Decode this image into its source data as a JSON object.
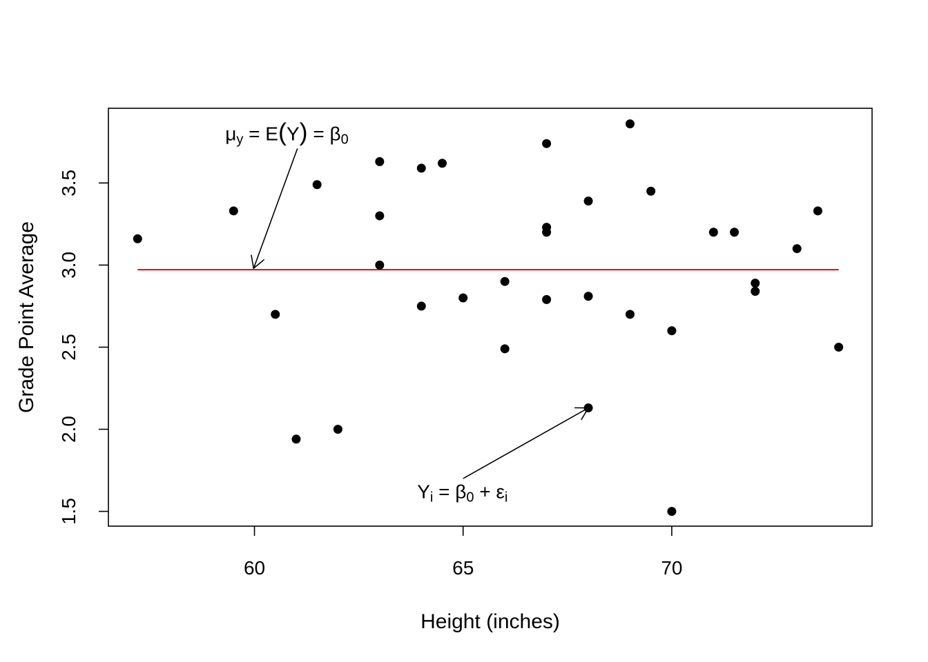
{
  "chart_data": {
    "type": "scatter",
    "xlabel": "Height (inches)",
    "ylabel": "Grade Point Average",
    "xlim": [
      56.5,
      74.8
    ],
    "ylim": [
      1.41,
      3.955
    ],
    "xticks": [
      60,
      65,
      70
    ],
    "yticks": [
      1.5,
      2.0,
      2.5,
      3.0,
      3.5
    ],
    "grid": false,
    "points": [
      {
        "x": 57.2,
        "y": 3.16
      },
      {
        "x": 59.5,
        "y": 3.33
      },
      {
        "x": 60.5,
        "y": 2.7
      },
      {
        "x": 61.0,
        "y": 1.94
      },
      {
        "x": 61.5,
        "y": 3.49
      },
      {
        "x": 62.0,
        "y": 2.0
      },
      {
        "x": 63.0,
        "y": 3.63
      },
      {
        "x": 63.0,
        "y": 3.3
      },
      {
        "x": 63.0,
        "y": 3.0
      },
      {
        "x": 64.0,
        "y": 3.59
      },
      {
        "x": 64.0,
        "y": 2.75
      },
      {
        "x": 64.5,
        "y": 3.62
      },
      {
        "x": 65.0,
        "y": 2.8
      },
      {
        "x": 66.0,
        "y": 2.9
      },
      {
        "x": 66.0,
        "y": 2.49
      },
      {
        "x": 67.0,
        "y": 3.74
      },
      {
        "x": 67.0,
        "y": 3.23
      },
      {
        "x": 67.0,
        "y": 3.2
      },
      {
        "x": 67.0,
        "y": 2.79
      },
      {
        "x": 68.0,
        "y": 3.39
      },
      {
        "x": 68.0,
        "y": 2.81
      },
      {
        "x": 68.0,
        "y": 2.13
      },
      {
        "x": 69.0,
        "y": 3.86
      },
      {
        "x": 69.0,
        "y": 2.7
      },
      {
        "x": 69.5,
        "y": 3.45
      },
      {
        "x": 70.0,
        "y": 2.6
      },
      {
        "x": 70.0,
        "y": 1.5
      },
      {
        "x": 71.0,
        "y": 3.2
      },
      {
        "x": 71.5,
        "y": 3.2
      },
      {
        "x": 72.0,
        "y": 2.89
      },
      {
        "x": 72.0,
        "y": 2.84
      },
      {
        "x": 73.0,
        "y": 3.1
      },
      {
        "x": 73.5,
        "y": 3.33
      },
      {
        "x": 74.0,
        "y": 2.5
      }
    ],
    "mean_line": {
      "x_start": 57.2,
      "x_end": 74.0,
      "y": 2.972,
      "color": "#e8000b"
    },
    "annotations": [
      {
        "name": "mean-annotation",
        "parts": [
          {
            "t": "μ"
          },
          {
            "t": "y",
            "sub": true
          },
          {
            "t": " = E"
          },
          {
            "t": "(",
            "big": true
          },
          {
            "t": "Y"
          },
          {
            "t": ")",
            "big": true
          },
          {
            "t": " = β"
          },
          {
            "t": "0",
            "sub": true
          }
        ],
        "text_x": 59.3,
        "text_y": 3.76,
        "arrow_from": {
          "x": 61.03,
          "y": 3.71
        },
        "arrow_to": {
          "x": 59.98,
          "y": 2.98
        }
      },
      {
        "name": "observation-annotation",
        "parts": [
          {
            "t": "Y"
          },
          {
            "t": "i",
            "sub": true
          },
          {
            "t": " = β"
          },
          {
            "t": "0",
            "sub": true
          },
          {
            "t": " + ε"
          },
          {
            "t": "i",
            "sub": true
          }
        ],
        "text_x": 63.9,
        "text_y": 1.58,
        "arrow_from": {
          "x": 65.0,
          "y": 1.7
        },
        "arrow_to": {
          "x": 68.0,
          "y": 2.13
        }
      }
    ]
  }
}
